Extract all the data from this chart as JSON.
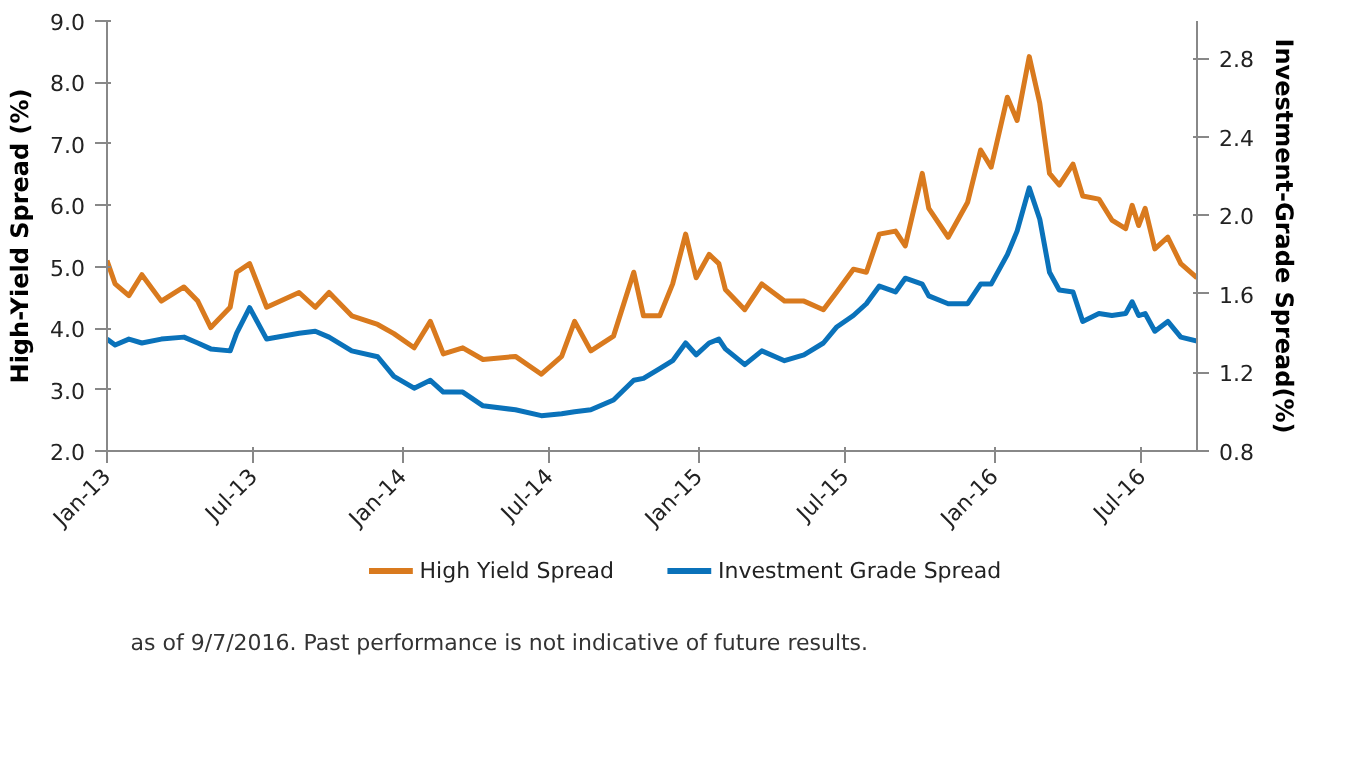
{
  "chart_data": {
    "type": "line",
    "xlabel": null,
    "ylabel": "High-Yield Spread (%)",
    "y2label": "Investment-Grade Spread(%)",
    "xlim": [
      "2013-01-01",
      "2016-09-07"
    ],
    "xticks": [
      {
        "value": "2013-01-01",
        "label": "Jan-13"
      },
      {
        "value": "2013-07-01",
        "label": "Jul-13"
      },
      {
        "value": "2014-01-01",
        "label": "Jan-14"
      },
      {
        "value": "2014-07-01",
        "label": "Jul-14"
      },
      {
        "value": "2015-01-01",
        "label": "Jan-15"
      },
      {
        "value": "2015-07-01",
        "label": "Jul-15"
      },
      {
        "value": "2016-01-01",
        "label": "Jan-16"
      },
      {
        "value": "2016-07-01",
        "label": "Jul-16"
      }
    ],
    "ylim": [
      2,
      9
    ],
    "yticks": [
      {
        "value": 2,
        "label": "2.0"
      },
      {
        "value": 3,
        "label": "3.0"
      },
      {
        "value": 4,
        "label": "4.0"
      },
      {
        "value": 5,
        "label": "5.0"
      },
      {
        "value": 6,
        "label": "6.0"
      },
      {
        "value": 7,
        "label": "7.0"
      },
      {
        "value": 8,
        "label": "8.0"
      },
      {
        "value": 9,
        "label": "9.0"
      }
    ],
    "y2lim": [
      0.8,
      2.99
    ],
    "y2ticks": [
      {
        "value": 0.8,
        "label": "0.8"
      },
      {
        "value": 1.2,
        "label": "1.2"
      },
      {
        "value": 1.6,
        "label": "1.6"
      },
      {
        "value": 2.0,
        "label": "2.0"
      },
      {
        "value": 2.4,
        "label": "2.4"
      },
      {
        "value": 2.8,
        "label": "2.8"
      }
    ],
    "x": [
      "2013-01-01",
      "2013-01-11",
      "2013-01-28",
      "2013-02-13",
      "2013-03-09",
      "2013-04-06",
      "2013-04-23",
      "2013-05-09",
      "2013-06-02",
      "2013-06-10",
      "2013-06-26",
      "2013-07-17",
      "2013-08-26",
      "2013-09-15",
      "2013-10-02",
      "2013-10-30",
      "2013-12-01",
      "2013-12-21",
      "2014-01-15",
      "2014-02-04",
      "2014-02-20",
      "2014-03-16",
      "2014-04-10",
      "2014-05-20",
      "2014-06-21",
      "2014-07-16",
      "2014-08-01",
      "2014-08-21",
      "2014-09-18",
      "2014-10-13",
      "2014-10-25",
      "2014-11-14",
      "2014-11-30",
      "2014-12-16",
      "2014-12-29",
      "2015-01-14",
      "2015-01-26",
      "2015-02-03",
      "2015-02-27",
      "2015-03-20",
      "2015-04-17",
      "2015-05-11",
      "2015-06-04",
      "2015-06-20",
      "2015-07-11",
      "2015-07-27",
      "2015-08-12",
      "2015-09-01",
      "2015-09-13",
      "2015-10-04",
      "2015-10-12",
      "2015-11-05",
      "2015-11-29",
      "2015-12-15",
      "2015-12-28",
      "2016-01-17",
      "2016-01-29",
      "2016-02-13",
      "2016-02-26",
      "2016-03-09",
      "2016-03-21",
      "2016-04-07",
      "2016-04-19",
      "2016-05-09",
      "2016-05-25",
      "2016-06-11",
      "2016-06-19",
      "2016-06-27",
      "2016-07-05",
      "2016-07-17",
      "2016-08-02",
      "2016-08-18",
      "2016-09-07"
    ],
    "series": [
      {
        "name": "High Yield Spread",
        "color": "#d97a1e",
        "values": [
          5.1,
          4.72,
          4.53,
          4.87,
          4.44,
          4.67,
          4.44,
          4.01,
          4.34,
          4.91,
          5.05,
          4.34,
          4.58,
          4.34,
          4.58,
          4.2,
          4.06,
          3.91,
          3.68,
          4.11,
          3.58,
          3.68,
          3.49,
          3.54,
          3.25,
          3.54,
          4.11,
          3.63,
          3.87,
          4.91,
          4.2,
          4.2,
          4.72,
          5.53,
          4.82,
          5.2,
          5.05,
          4.63,
          4.3,
          4.72,
          4.44,
          4.44,
          4.3,
          4.58,
          4.96,
          4.91,
          5.53,
          5.58,
          5.34,
          6.52,
          5.95,
          5.48,
          6.05,
          6.9,
          6.62,
          7.76,
          7.38,
          8.42,
          7.66,
          6.52,
          6.33,
          6.67,
          6.15,
          6.1,
          5.76,
          5.62,
          6.0,
          5.67,
          5.95,
          5.29,
          5.48,
          5.05,
          4.82
        ]
      },
      {
        "name": "Investment Grade Spread",
        "color": "#0a72ba",
        "values": [
          1.37,
          1.34,
          1.37,
          1.35,
          1.37,
          1.38,
          1.35,
          1.32,
          1.31,
          1.4,
          1.53,
          1.37,
          1.4,
          1.41,
          1.38,
          1.31,
          1.28,
          1.18,
          1.12,
          1.16,
          1.1,
          1.1,
          1.03,
          1.01,
          0.98,
          0.99,
          1.0,
          1.01,
          1.06,
          1.16,
          1.17,
          1.22,
          1.26,
          1.35,
          1.29,
          1.35,
          1.37,
          1.32,
          1.24,
          1.31,
          1.26,
          1.29,
          1.35,
          1.43,
          1.49,
          1.55,
          1.64,
          1.61,
          1.68,
          1.65,
          1.59,
          1.55,
          1.55,
          1.65,
          1.65,
          1.8,
          1.92,
          2.14,
          1.98,
          1.71,
          1.62,
          1.61,
          1.46,
          1.5,
          1.49,
          1.5,
          1.56,
          1.49,
          1.5,
          1.41,
          1.46,
          1.38,
          1.36
        ],
        "axis": "y2"
      }
    ],
    "legend": "bottom",
    "grid": false,
    "annotations": [
      "as of 9/7/2016. Past performance is not indicative of future results."
    ]
  }
}
